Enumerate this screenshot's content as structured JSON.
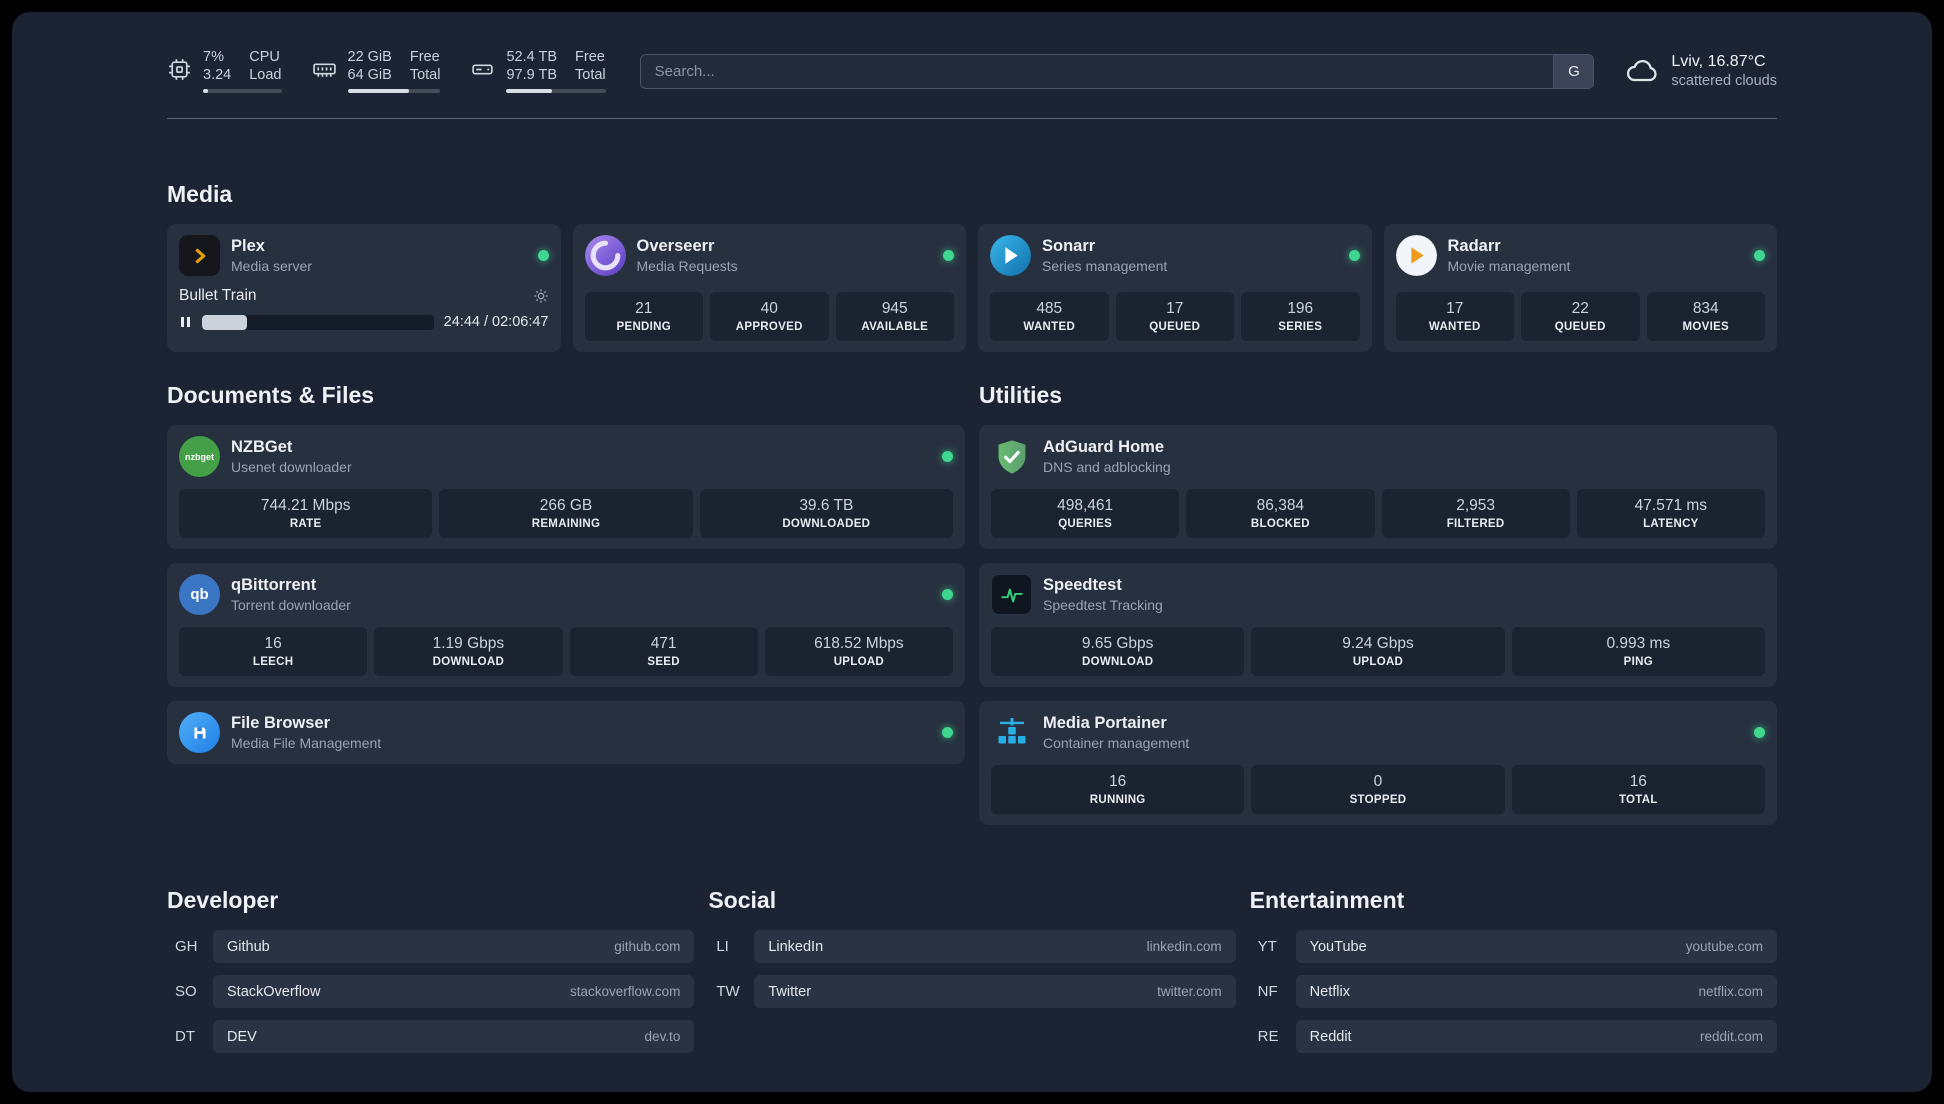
{
  "topbar": {
    "cpu": {
      "value_top": "7%",
      "label_top": "CPU",
      "value_bottom": "3.24",
      "label_bottom": "Load",
      "bar_percent": 7
    },
    "memory": {
      "value_top": "22 GiB",
      "label_top": "Free",
      "value_bottom": "64 GiB",
      "label_bottom": "Total",
      "bar_percent": 66
    },
    "disk": {
      "value_top": "52.4 TB",
      "label_top": "Free",
      "value_bottom": "97.9 TB",
      "label_bottom": "Total",
      "bar_percent": 46
    },
    "search": {
      "placeholder": "Search...",
      "engine_button": "G"
    },
    "weather": {
      "location": "Lviv, 16.87°C",
      "condition": "scattered clouds"
    }
  },
  "sections": {
    "media": {
      "title": "Media",
      "services": [
        {
          "name": "Plex",
          "description": "Media server",
          "status_color": "#3fd68f",
          "player": {
            "title": "Bullet Train",
            "time": "24:44 / 02:06:47",
            "progress_percent": 19.5
          }
        },
        {
          "name": "Overseerr",
          "description": "Media Requests",
          "status_color": "#3fd68f",
          "stats": [
            {
              "value": "21",
              "label": "PENDING"
            },
            {
              "value": "40",
              "label": "APPROVED"
            },
            {
              "value": "945",
              "label": "AVAILABLE"
            }
          ]
        },
        {
          "name": "Sonarr",
          "description": "Series management",
          "status_color": "#3fd68f",
          "stats": [
            {
              "value": "485",
              "label": "WANTED"
            },
            {
              "value": "17",
              "label": "QUEUED"
            },
            {
              "value": "196",
              "label": "SERIES"
            }
          ]
        },
        {
          "name": "Radarr",
          "description": "Movie management",
          "status_color": "#3fd68f",
          "stats": [
            {
              "value": "17",
              "label": "WANTED"
            },
            {
              "value": "22",
              "label": "QUEUED"
            },
            {
              "value": "834",
              "label": "MOVIES"
            }
          ]
        }
      ]
    },
    "documents": {
      "title": "Documents & Files",
      "services": [
        {
          "name": "NZBGet",
          "description": "Usenet downloader",
          "status_color": "#3fd68f",
          "icon_text": "nzbget",
          "stats": [
            {
              "value": "744.21 Mbps",
              "label": "RATE"
            },
            {
              "value": "266 GB",
              "label": "REMAINING"
            },
            {
              "value": "39.6 TB",
              "label": "DOWNLOADED"
            }
          ]
        },
        {
          "name": "qBittorrent",
          "description": "Torrent downloader",
          "status_color": "#3fd68f",
          "icon_text": "qb",
          "stats": [
            {
              "value": "16",
              "label": "LEECH"
            },
            {
              "value": "1.19 Gbps",
              "label": "DOWNLOAD"
            },
            {
              "value": "471",
              "label": "SEED"
            },
            {
              "value": "618.52 Mbps",
              "label": "UPLOAD"
            }
          ]
        },
        {
          "name": "File Browser",
          "description": "Media File Management",
          "status_color": "#3fd68f"
        }
      ]
    },
    "utilities": {
      "title": "Utilities",
      "services": [
        {
          "name": "AdGuard Home",
          "description": "DNS and adblocking",
          "stats": [
            {
              "value": "498,461",
              "label": "QUERIES"
            },
            {
              "value": "86,384",
              "label": "BLOCKED"
            },
            {
              "value": "2,953",
              "label": "FILTERED"
            },
            {
              "value": "47.571 ms",
              "label": "LATENCY"
            }
          ]
        },
        {
          "name": "Speedtest",
          "description": "Speedtest Tracking",
          "stats": [
            {
              "value": "9.65 Gbps",
              "label": "DOWNLOAD"
            },
            {
              "value": "9.24 Gbps",
              "label": "UPLOAD"
            },
            {
              "value": "0.993 ms",
              "label": "PING"
            }
          ]
        },
        {
          "name": "Media Portainer",
          "description": "Container management",
          "status_color": "#3fd68f",
          "stats": [
            {
              "value": "16",
              "label": "RUNNING"
            },
            {
              "value": "0",
              "label": "STOPPED"
            },
            {
              "value": "16",
              "label": "TOTAL"
            }
          ]
        }
      ]
    },
    "bookmarks": [
      {
        "title": "Developer",
        "links": [
          {
            "abbr": "GH",
            "name": "Github",
            "url": "github.com"
          },
          {
            "abbr": "SO",
            "name": "StackOverflow",
            "url": "stackoverflow.com"
          },
          {
            "abbr": "DT",
            "name": "DEV",
            "url": "dev.to"
          }
        ]
      },
      {
        "title": "Social",
        "links": [
          {
            "abbr": "LI",
            "name": "LinkedIn",
            "url": "linkedin.com"
          },
          {
            "abbr": "TW",
            "name": "Twitter",
            "url": "twitter.com"
          }
        ]
      },
      {
        "title": "Entertainment",
        "links": [
          {
            "abbr": "YT",
            "name": "YouTube",
            "url": "youtube.com"
          },
          {
            "abbr": "NF",
            "name": "Netflix",
            "url": "netflix.com"
          },
          {
            "abbr": "RE",
            "name": "Reddit",
            "url": "reddit.com"
          }
        ]
      }
    ]
  }
}
